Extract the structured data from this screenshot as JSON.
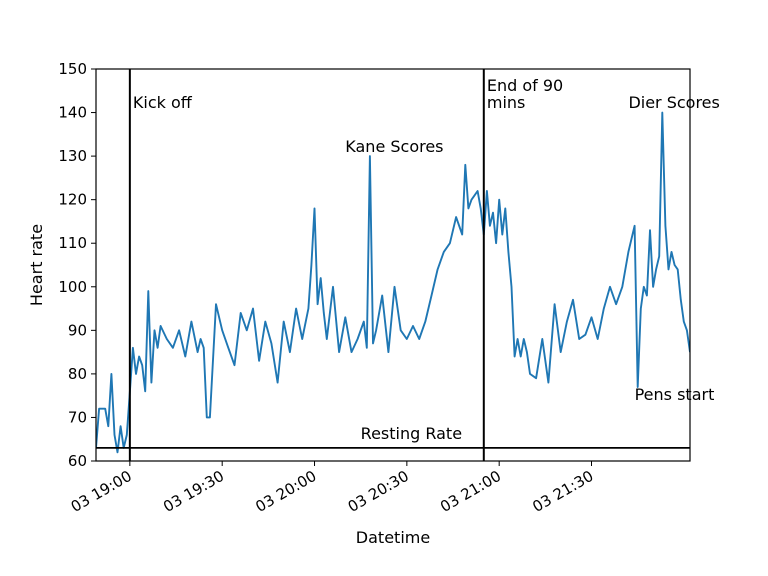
{
  "chart_data": {
    "type": "line",
    "title": "",
    "xlabel": "Datetime",
    "ylabel": "Heart rate",
    "ylim": [
      60,
      150
    ],
    "xlim": [
      "03 18:49",
      "03 22:02"
    ],
    "yticks": [
      60,
      70,
      80,
      90,
      100,
      110,
      120,
      130,
      140,
      150
    ],
    "xtick_labels": [
      "03 19:00",
      "03 19:30",
      "03 20:00",
      "03 20:30",
      "03 21:00",
      "03 21:30"
    ],
    "xtick_times": [
      "19:00",
      "19:30",
      "20:00",
      "20:30",
      "21:00",
      "21:30"
    ],
    "grid": false,
    "series": [
      {
        "color": "#1f77b4",
        "x": [
          "18:49",
          "18:50",
          "18:51",
          "18:52",
          "18:53",
          "18:54",
          "18:55",
          "18:56",
          "18:57",
          "18:58",
          "18:59",
          "19:00",
          "19:01",
          "19:02",
          "19:03",
          "19:04",
          "19:05",
          "19:06",
          "19:07",
          "19:08",
          "19:09",
          "19:10",
          "19:12",
          "19:14",
          "19:16",
          "19:18",
          "19:20",
          "19:22",
          "19:23",
          "19:24",
          "19:25",
          "19:26",
          "19:28",
          "19:30",
          "19:32",
          "19:34",
          "19:36",
          "19:38",
          "19:40",
          "19:42",
          "19:44",
          "19:46",
          "19:48",
          "19:50",
          "19:52",
          "19:54",
          "19:56",
          "19:58",
          "19:59",
          "20:00",
          "20:01",
          "20:02",
          "20:03",
          "20:04",
          "20:06",
          "20:08",
          "20:10",
          "20:12",
          "20:14",
          "20:16",
          "20:17",
          "20:18",
          "20:19",
          "20:20",
          "20:22",
          "20:24",
          "20:26",
          "20:28",
          "20:30",
          "20:32",
          "20:34",
          "20:36",
          "20:38",
          "20:40",
          "20:42",
          "20:44",
          "20:46",
          "20:48",
          "20:49",
          "20:50",
          "20:51",
          "20:52",
          "20:53",
          "20:54",
          "20:55",
          "20:56",
          "20:57",
          "20:58",
          "20:59",
          "21:00",
          "21:01",
          "21:02",
          "21:03",
          "21:04",
          "21:05",
          "21:06",
          "21:07",
          "21:08",
          "21:09",
          "21:10",
          "21:12",
          "21:14",
          "21:16",
          "21:18",
          "21:20",
          "21:22",
          "21:24",
          "21:26",
          "21:28",
          "21:30",
          "21:32",
          "21:34",
          "21:36",
          "21:38",
          "21:40",
          "21:42",
          "21:44",
          "21:45",
          "21:46",
          "21:47",
          "21:48",
          "21:49",
          "21:50",
          "21:51",
          "21:52",
          "21:53",
          "21:54",
          "21:55",
          "21:56",
          "21:57",
          "21:58",
          "21:59",
          "22:00",
          "22:01",
          "22:02"
        ],
        "y": [
          63,
          72,
          72,
          72,
          68,
          80,
          66,
          62,
          68,
          63,
          66,
          76,
          86,
          80,
          84,
          82,
          76,
          99,
          78,
          90,
          86,
          91,
          88,
          86,
          90,
          84,
          92,
          85,
          88,
          86,
          70,
          70,
          96,
          90,
          86,
          82,
          94,
          90,
          95,
          83,
          92,
          87,
          78,
          92,
          85,
          95,
          88,
          95,
          105,
          118,
          96,
          102,
          94,
          88,
          100,
          85,
          93,
          85,
          88,
          92,
          86,
          130,
          87,
          90,
          98,
          85,
          100,
          90,
          88,
          91,
          88,
          92,
          98,
          104,
          108,
          110,
          116,
          112,
          128,
          118,
          120,
          121,
          122,
          118,
          112,
          122,
          114,
          117,
          110,
          120,
          112,
          118,
          108,
          100,
          84,
          88,
          84,
          88,
          85,
          80,
          79,
          88,
          78,
          96,
          85,
          92,
          97,
          88,
          89,
          93,
          88,
          95,
          100,
          96,
          100,
          108,
          114,
          77,
          95,
          100,
          98,
          113,
          100,
          104,
          107,
          140,
          114,
          104,
          108,
          105,
          104,
          97,
          92,
          90,
          85
        ]
      },
      {
        "name": "",
        "x": [
          "18:49",
          "22:02"
        ],
        "y": [
          63,
          63
        ],
        "color": "#000000"
      }
    ],
    "vlines": [
      "19:00",
      "20:55"
    ],
    "annotations": [
      {
        "text": "Kick off",
        "x": "19:01",
        "y": 141
      },
      {
        "text": "Kane Scores",
        "x": "20:10",
        "y": 131
      },
      {
        "text": "End of 90",
        "x": "20:56",
        "y": 145
      },
      {
        "text": "mins",
        "x": "20:56",
        "y": 141
      },
      {
        "text": "Dier Scores",
        "x": "21:42",
        "y": 141
      },
      {
        "text": "Pens start",
        "x": "21:44",
        "y": 74
      },
      {
        "text": "Resting Rate",
        "x": "20:15",
        "y": 65
      }
    ]
  }
}
